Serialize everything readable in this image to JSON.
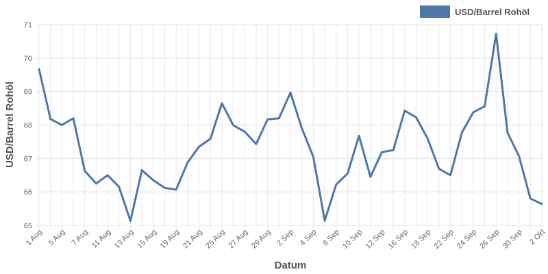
{
  "chart_data": {
    "type": "line",
    "x": [
      "1 Aug",
      "4 Aug",
      "5 Aug",
      "6 Aug",
      "7 Aug",
      "8 Aug",
      "11 Aug",
      "12 Aug",
      "13 Aug",
      "14 Aug",
      "15 Aug",
      "18 Aug",
      "19 Aug",
      "20 Aug",
      "21 Aug",
      "22 Aug",
      "25 Aug",
      "26 Aug",
      "27 Aug",
      "28 Aug",
      "29 Aug",
      "1 Sep",
      "2 Sep",
      "3 Sep",
      "4 Sep",
      "5 Sep",
      "8 Sep",
      "9 Sep",
      "10 Sep",
      "11 Sep",
      "12 Sep",
      "15 Sep",
      "16 Sep",
      "17 Sep",
      "18 Sep",
      "19 Sep",
      "22 Sep",
      "23 Sep",
      "24 Sep",
      "25 Sep",
      "26 Sep",
      "29 Sep",
      "30 Sep",
      "1 Okt",
      "2 Okt"
    ],
    "x_tick_labels": [
      "1 Aug",
      "5 Aug",
      "7 Aug",
      "11 Aug",
      "13 Aug",
      "15 Aug",
      "19 Aug",
      "21 Aug",
      "25 Aug",
      "27 Aug",
      "29 Aug",
      "2 Sep",
      "4 Sep",
      "8 Sep",
      "10 Sep",
      "12 Sep",
      "16 Sep",
      "18 Sep",
      "22 Sep",
      "24 Sep",
      "26 Sep",
      "30 Sep",
      "2 Okt"
    ],
    "series": [
      {
        "name": "USD/Barrel Rohöl",
        "color": "#4e77a8",
        "values": [
          69.67,
          68.18,
          68.0,
          68.2,
          66.63,
          66.25,
          66.5,
          66.15,
          65.13,
          66.65,
          66.35,
          66.12,
          66.07,
          66.88,
          67.35,
          67.59,
          68.65,
          67.99,
          67.8,
          67.43,
          68.17,
          68.2,
          68.97,
          67.9,
          67.05,
          65.14,
          66.22,
          66.55,
          67.68,
          66.45,
          67.19,
          67.25,
          68.43,
          68.23,
          67.6,
          66.69,
          66.5,
          67.77,
          68.38,
          68.56,
          70.73,
          67.77,
          67.07,
          65.8,
          65.64
        ]
      }
    ],
    "xlabel": "Datum",
    "ylabel": "USD/Barrel Rohöl",
    "ylim": [
      65,
      71
    ],
    "yticks": [
      "65",
      "66",
      "67",
      "68",
      "69",
      "70",
      "71"
    ],
    "grid": true,
    "legend_position": "top-right"
  }
}
